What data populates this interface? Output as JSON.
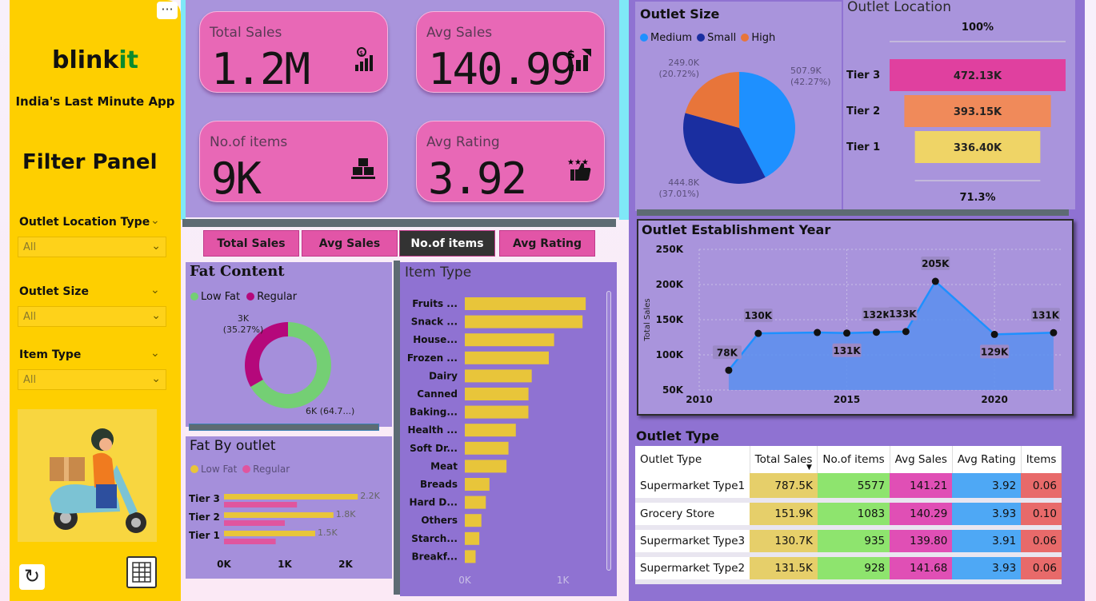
{
  "app": {
    "logo_main": "blink",
    "logo_accent": "it",
    "tagline": "India's Last Minute App",
    "more_label": "···"
  },
  "filter": {
    "title": "Filter Panel",
    "items": [
      {
        "label": "Outlet Location Type",
        "value": "All"
      },
      {
        "label": "Outlet Size",
        "value": "All"
      },
      {
        "label": "Item Type",
        "value": "All"
      }
    ]
  },
  "kpis": [
    {
      "label": "Total Sales",
      "value": "1.2M",
      "icon": "sales-growth-icon"
    },
    {
      "label": "Avg Sales",
      "value": "140.99",
      "icon": "dollar-bars-icon"
    },
    {
      "label": "No.of items",
      "value": "9K",
      "icon": "boxes-icon"
    },
    {
      "label": "Avg Rating",
      "value": "3.92",
      "icon": "stars-thumb-icon"
    }
  ],
  "tabs": [
    "Total Sales",
    "Avg Sales",
    "No.of items",
    "Avg Rating"
  ],
  "selected_tab": "No.of items",
  "colors": {
    "accent": "#fecf00",
    "pink": "#e868b6",
    "panel": "#a58fdb",
    "brand_green": "#0c8a2d"
  },
  "chart_data": [
    {
      "id": "fat_content",
      "type": "pie",
      "title": "Fat Content",
      "donut": true,
      "labels": [
        "Low Fat",
        "Regular"
      ],
      "values": [
        6,
        3
      ],
      "colors": [
        "#74cf74",
        "#b5087b"
      ],
      "data_labels": [
        "6K (64.7...)",
        "3K\n(35.27%)"
      ],
      "legend_position": "top-left"
    },
    {
      "id": "fat_by_outlet",
      "type": "bar",
      "orientation": "horizontal",
      "title": "Fat By outlet",
      "categories": [
        "Tier 3",
        "Tier 2",
        "Tier 1"
      ],
      "series": [
        {
          "name": "Low Fat",
          "values": [
            2.2,
            1.8,
            1.5
          ],
          "labels": [
            "2.2K",
            "1.8K",
            "1.5K"
          ],
          "color": "#e8c53a"
        },
        {
          "name": "Regular",
          "values": [
            1.2,
            1.0,
            0.85
          ],
          "color": "#e0559f"
        }
      ],
      "xticks": [
        "0K",
        "1K",
        "2K"
      ],
      "xlim": [
        0,
        2.5
      ],
      "legend_position": "top-left"
    },
    {
      "id": "item_type",
      "type": "bar",
      "orientation": "horizontal",
      "title": "Item Type",
      "categories": [
        "Fruits ...",
        "Snack ...",
        "House...",
        "Frozen ...",
        "Dairy",
        "Canned",
        "Baking...",
        "Health ...",
        "Soft Dr...",
        "Meat",
        "Breads",
        "Hard D...",
        "Others",
        "Starch...",
        "Breakf..."
      ],
      "values": [
        1232,
        1200,
        910,
        856,
        682,
        649,
        648,
        520,
        445,
        425,
        251,
        214,
        169,
        148,
        110
      ],
      "xticks": [
        "0K",
        "1K"
      ],
      "xlim": [
        0,
        1500
      ],
      "color": "#e8c53a"
    },
    {
      "id": "outlet_size",
      "type": "pie",
      "title": "Outlet Size",
      "labels": [
        "Medium",
        "Small",
        "High"
      ],
      "values": [
        507.9,
        444.8,
        249.0
      ],
      "colors": [
        "#1e90ff",
        "#1a2ea0",
        "#e8753a"
      ],
      "data_labels": [
        "507.9K\n(42.27%)",
        "444.8K\n(37.01%)",
        "249.0K\n(20.72%)"
      ],
      "legend_position": "top-left"
    },
    {
      "id": "outlet_location",
      "type": "bar",
      "subtype": "funnel",
      "title": "Outlet Location",
      "categories": [
        "Tier 3",
        "Tier 2",
        "Tier 1"
      ],
      "values": [
        472.13,
        393.15,
        336.4
      ],
      "labels": [
        "472.13K",
        "393.15K",
        "336.40K"
      ],
      "colors": [
        "#e0409f",
        "#f08a5a",
        "#efd466"
      ],
      "top_percent": "100%",
      "bottom_percent": "71.3%"
    },
    {
      "id": "establishment_year",
      "type": "area",
      "title": "Outlet Establishment Year",
      "x": [
        2011,
        2012,
        2014,
        2015,
        2016,
        2017,
        2018,
        2020,
        2022
      ],
      "y": [
        78.1,
        130.5,
        131.8,
        130.9,
        132.1,
        133.1,
        204.5,
        129.1,
        131.5
      ],
      "point_labels": [
        "78K",
        "130K",
        "",
        "131K",
        "132K",
        "133K",
        "205K",
        "129K",
        "131K"
      ],
      "ylabel": "Total Sales",
      "yticks": [
        "50K",
        "100K",
        "150K",
        "200K",
        "250K"
      ],
      "xticks": [
        "2010",
        "2015",
        "2020"
      ],
      "ylim": [
        50,
        250
      ],
      "xlim": [
        2010,
        2022.3
      ],
      "grid": true,
      "color": "#5b8fef"
    }
  ],
  "outlet_table": {
    "title": "Outlet Type",
    "headers": [
      "Outlet Type",
      "Total Sales",
      "No.of items",
      "Avg Sales",
      "Avg Rating",
      "Items"
    ],
    "rows": [
      [
        "Supermarket Type1",
        "787.5K",
        "5577",
        "141.21",
        "3.92",
        "0.06"
      ],
      [
        "Grocery Store",
        "151.9K",
        "1083",
        "140.29",
        "3.93",
        "0.10"
      ],
      [
        "Supermarket Type3",
        "130.7K",
        "935",
        "139.80",
        "3.91",
        "0.06"
      ],
      [
        "Supermarket Type2",
        "131.5K",
        "928",
        "141.68",
        "3.93",
        "0.06"
      ]
    ],
    "col_colors": [
      "#ffffff",
      "#e6cf6a",
      "#8ee46e",
      "#e04fb5",
      "#4ea8f5",
      "#e86a6a"
    ]
  }
}
